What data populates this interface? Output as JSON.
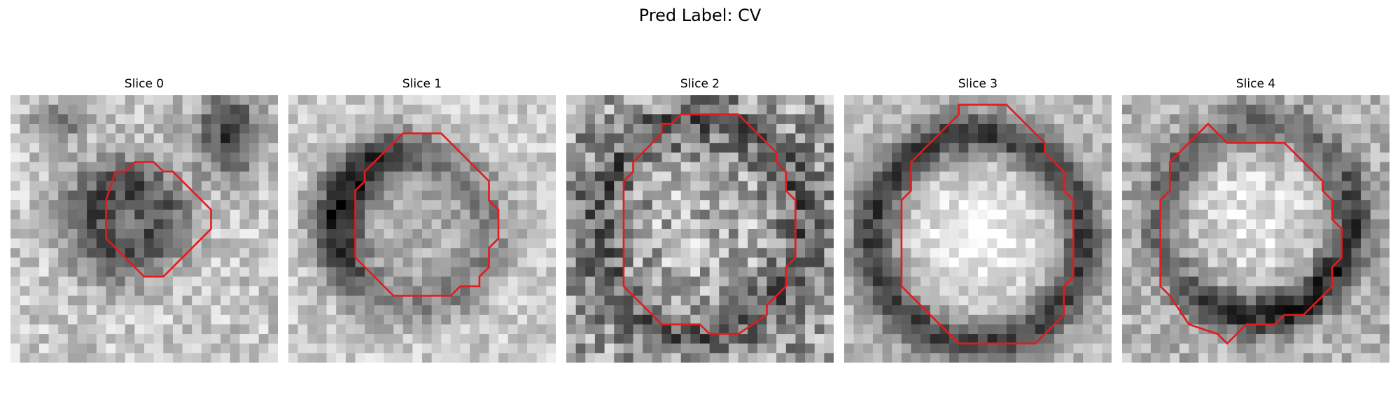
{
  "figure": {
    "title": "Pred Label: CV",
    "contour_color": "#e41a1c",
    "colormap": "grayscale",
    "grid_size": 28,
    "panels": [
      {
        "title": "Slice 0",
        "image": "grayscale microscopy crop of a small dark round vesicle with a darker blob in the top-right corner",
        "contour": "red outline around the small dark vesicle"
      },
      {
        "title": "Slice 1",
        "image": "grayscale crop of a vesicle with a dark crescent membrane on the upper-left side",
        "contour": "red outline around the vesicle"
      },
      {
        "title": "Slice 2",
        "image": "grayscale noisy crop of a large round vesicle with a dark rim",
        "contour": "red outline around the vesicle"
      },
      {
        "title": "Slice 3",
        "image": "grayscale crop of a bright vesicle lumen surrounded by a dark ring",
        "contour": "red outline around the vesicle"
      },
      {
        "title": "Slice 4",
        "image": "grayscale crop of a bright vesicle with a dark lower rim",
        "contour": "red outline around the vesicle"
      }
    ]
  }
}
